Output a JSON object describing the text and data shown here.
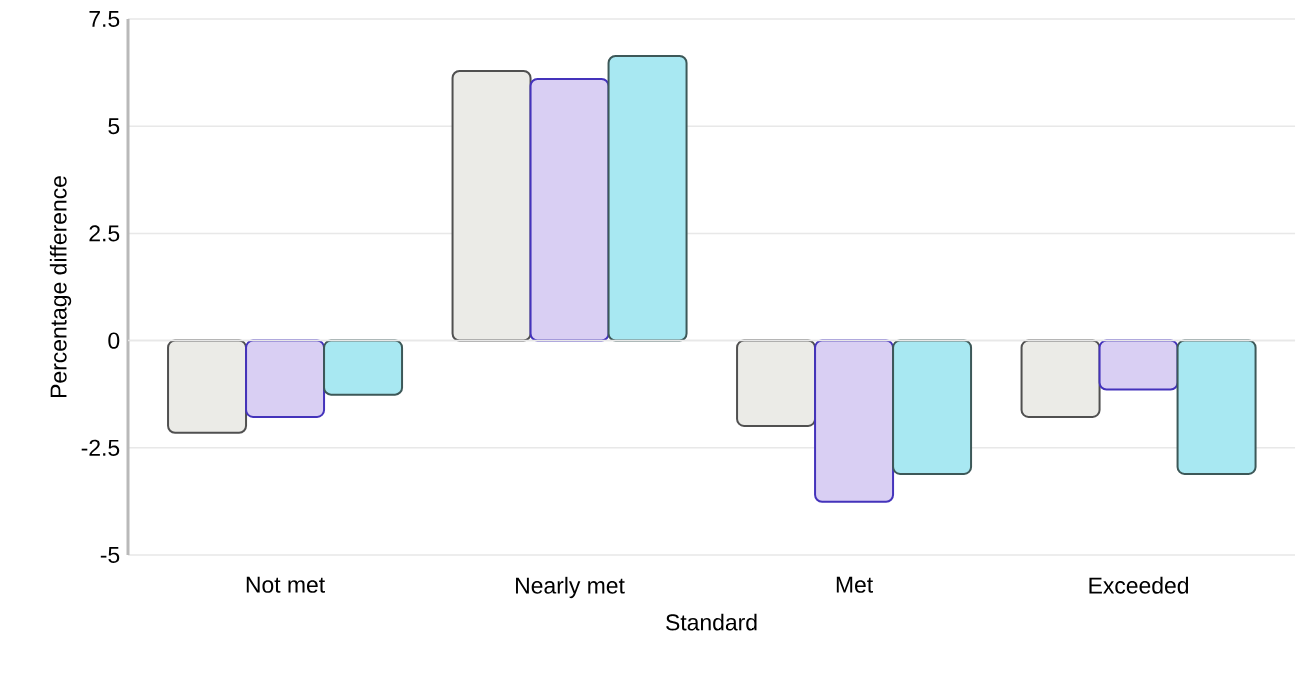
{
  "chart_data": {
    "type": "bar",
    "xlabel": "Standard",
    "ylabel": "Percentage difference",
    "categories": [
      "Not met",
      "Nearly met",
      "Met",
      "Exceeded"
    ],
    "series": [
      {
        "color": "#ebebe7",
        "values": [
          -2.15,
          6.29,
          -1.99,
          -1.78
        ]
      },
      {
        "color": "#d9cff3",
        "values": [
          -1.78,
          6.1,
          -3.76,
          -1.14
        ]
      },
      {
        "color": "#a8e8f2",
        "values": [
          -1.26,
          6.64,
          -3.11,
          -3.11
        ]
      }
    ],
    "ylim": [
      -5,
      7.5
    ],
    "yticks": [
      -5,
      -2.5,
      0,
      2.5,
      5,
      7.5
    ],
    "grid": "y"
  }
}
